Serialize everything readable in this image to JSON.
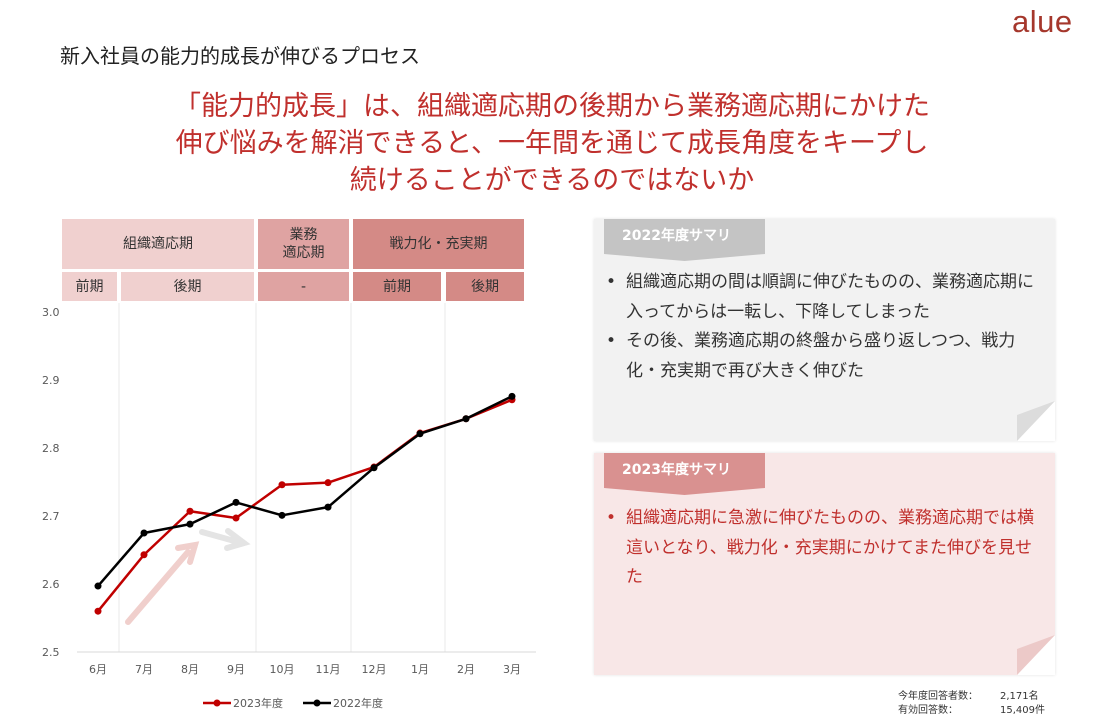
{
  "logo": "alue",
  "subtitle": "新入社員の能力的成長が伸びるプロセス",
  "headline": [
    "「能力的成長」は、組織適応期の後期から業務適応期にかけた",
    "伸び悩みを解消できると、一年間を通じて成長角度をキープし",
    "続けることができるのではないか"
  ],
  "phase_header": {
    "top": [
      "組織適応期",
      "業務\n適応期",
      "戦力化・充実期"
    ],
    "sub": [
      "前期",
      "後期",
      "-",
      "前期",
      "後期"
    ]
  },
  "summary_2022": {
    "title": "2022年度サマリ",
    "bullets": [
      "組織適応期の間は順調に伸びたものの、業務適応期に入ってからは一転し、下降してしまった",
      "その後、業務適応期の終盤から盛り返しつつ、戦力化・充実期で再び大きく伸びた"
    ]
  },
  "summary_2023": {
    "title": "2023年度サマリ",
    "bullets": [
      "組織適応期に急激に伸びたものの、業務適応期では横這いとなり、戦力化・充実期にかけてまた伸びを見せた"
    ]
  },
  "counts": {
    "respondents_label": "今年度回答者数：",
    "respondents_value": "2,171名",
    "valid_label": "有効回答数：",
    "valid_value": "15,409件"
  },
  "colors": {
    "series_2023": "#c00000",
    "series_2022": "#000000",
    "accent": "#c0302d"
  },
  "chart_data": {
    "type": "line",
    "categories": [
      "6月",
      "7月",
      "8月",
      "9月",
      "10月",
      "11月",
      "12月",
      "1月",
      "2月",
      "3月"
    ],
    "series": [
      {
        "name": "2023年度",
        "values": [
          2.56,
          2.643,
          2.707,
          2.697,
          2.746,
          2.749,
          2.772,
          2.822,
          2.843,
          2.871
        ]
      },
      {
        "name": "2022年度",
        "values": [
          2.597,
          2.675,
          2.688,
          2.72,
          2.701,
          2.713,
          2.771,
          2.821,
          2.843,
          2.876
        ]
      }
    ],
    "yticks": [
      "2.5",
      "2.6",
      "2.7",
      "2.8",
      "2.9",
      "3.0"
    ],
    "ylim": [
      2.5,
      3.0
    ],
    "legend": "bottom",
    "grid": false
  }
}
